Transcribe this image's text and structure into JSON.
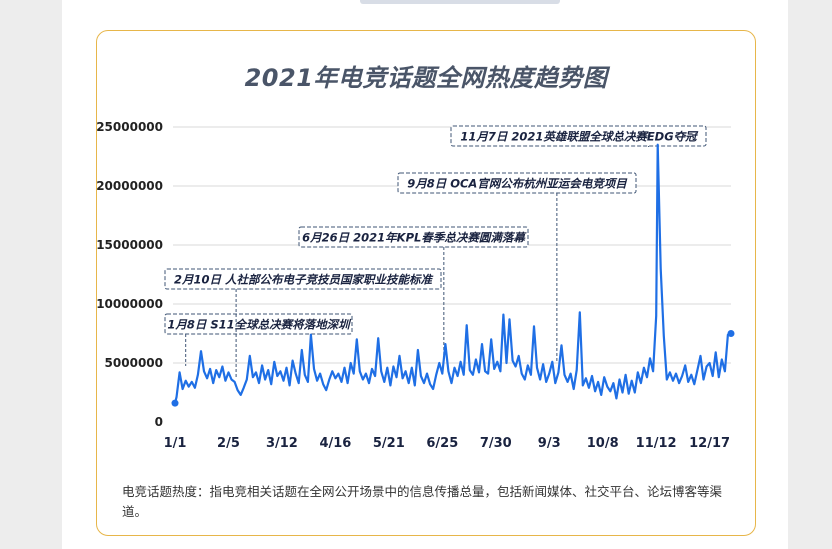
{
  "colors": {
    "line": "#1f6fe5",
    "card_border": "#e7b64a",
    "annotation_border": "#3f5575",
    "title": "#4a5568"
  },
  "chart_data": {
    "type": "line",
    "title": "2021年电竞话题全网热度趋势图",
    "xlabel": "",
    "ylabel": "",
    "ylim": [
      0,
      25000000
    ],
    "yticks": [
      0,
      5000000,
      10000000,
      15000000,
      20000000,
      25000000
    ],
    "ytick_labels": [
      "0",
      "5000000",
      "10000000",
      "15000000",
      "20000000",
      "25000000"
    ],
    "xlim": [
      1,
      365
    ],
    "xtick_days": [
      1,
      36,
      71,
      106,
      141,
      176,
      211,
      246,
      281,
      316,
      351
    ],
    "xtick_labels": [
      "1/1",
      "2/5",
      "3/12",
      "4/16",
      "5/21",
      "6/25",
      "7/30",
      "9/3",
      "10/8",
      "11/12",
      "12/17"
    ],
    "grid": true,
    "series": [
      {
        "points": [
          [
            1,
            1600000
          ],
          [
            2,
            2100000
          ],
          [
            4,
            4200000
          ],
          [
            6,
            2800000
          ],
          [
            8,
            3500000
          ],
          [
            10,
            3000000
          ],
          [
            12,
            3400000
          ],
          [
            14,
            2900000
          ],
          [
            16,
            4000000
          ],
          [
            18,
            6000000
          ],
          [
            20,
            4300000
          ],
          [
            22,
            3700000
          ],
          [
            24,
            4500000
          ],
          [
            26,
            3300000
          ],
          [
            28,
            4400000
          ],
          [
            30,
            3800000
          ],
          [
            32,
            4700000
          ],
          [
            34,
            3500000
          ],
          [
            36,
            4200000
          ],
          [
            38,
            3600000
          ],
          [
            40,
            3400000
          ],
          [
            42,
            2700000
          ],
          [
            44,
            2300000
          ],
          [
            46,
            2900000
          ],
          [
            48,
            3600000
          ],
          [
            50,
            5600000
          ],
          [
            52,
            3800000
          ],
          [
            54,
            4200000
          ],
          [
            56,
            3300000
          ],
          [
            58,
            4800000
          ],
          [
            60,
            3600000
          ],
          [
            62,
            4400000
          ],
          [
            64,
            3200000
          ],
          [
            66,
            5100000
          ],
          [
            68,
            3900000
          ],
          [
            70,
            4300000
          ],
          [
            72,
            3500000
          ],
          [
            74,
            4600000
          ],
          [
            76,
            3100000
          ],
          [
            78,
            5200000
          ],
          [
            80,
            4100000
          ],
          [
            82,
            3300000
          ],
          [
            84,
            6100000
          ],
          [
            86,
            4000000
          ],
          [
            88,
            3400000
          ],
          [
            90,
            7400000
          ],
          [
            92,
            4500000
          ],
          [
            94,
            3500000
          ],
          [
            96,
            4100000
          ],
          [
            98,
            3200000
          ],
          [
            100,
            2700000
          ],
          [
            102,
            3600000
          ],
          [
            104,
            4300000
          ],
          [
            106,
            3700000
          ],
          [
            108,
            4100000
          ],
          [
            110,
            3400000
          ],
          [
            112,
            4600000
          ],
          [
            114,
            3300000
          ],
          [
            116,
            5000000
          ],
          [
            118,
            4100000
          ],
          [
            120,
            7000000
          ],
          [
            122,
            4300000
          ],
          [
            124,
            3600000
          ],
          [
            126,
            4100000
          ],
          [
            128,
            3300000
          ],
          [
            130,
            4500000
          ],
          [
            132,
            3900000
          ],
          [
            134,
            7100000
          ],
          [
            136,
            4300000
          ],
          [
            138,
            3400000
          ],
          [
            140,
            4600000
          ],
          [
            142,
            3100000
          ],
          [
            144,
            4700000
          ],
          [
            146,
            3800000
          ],
          [
            148,
            5600000
          ],
          [
            150,
            3700000
          ],
          [
            152,
            4300000
          ],
          [
            154,
            3300000
          ],
          [
            156,
            4600000
          ],
          [
            158,
            3100000
          ],
          [
            160,
            6100000
          ],
          [
            162,
            3900000
          ],
          [
            164,
            3300000
          ],
          [
            166,
            4100000
          ],
          [
            168,
            3200000
          ],
          [
            170,
            2800000
          ],
          [
            172,
            4000000
          ],
          [
            174,
            5000000
          ],
          [
            176,
            4100000
          ],
          [
            178,
            6600000
          ],
          [
            180,
            4300000
          ],
          [
            182,
            3300000
          ],
          [
            184,
            4600000
          ],
          [
            186,
            3900000
          ],
          [
            188,
            5100000
          ],
          [
            190,
            4000000
          ],
          [
            192,
            8200000
          ],
          [
            194,
            4400000
          ],
          [
            196,
            4000000
          ],
          [
            198,
            5300000
          ],
          [
            200,
            4200000
          ],
          [
            202,
            6600000
          ],
          [
            204,
            4300000
          ],
          [
            206,
            4100000
          ],
          [
            208,
            7000000
          ],
          [
            210,
            4500000
          ],
          [
            212,
            5100000
          ],
          [
            214,
            4300000
          ],
          [
            216,
            9100000
          ],
          [
            218,
            5000000
          ],
          [
            220,
            8700000
          ],
          [
            222,
            5200000
          ],
          [
            224,
            4700000
          ],
          [
            226,
            5600000
          ],
          [
            228,
            4100000
          ],
          [
            230,
            3600000
          ],
          [
            232,
            4800000
          ],
          [
            234,
            4000000
          ],
          [
            236,
            8100000
          ],
          [
            238,
            4600000
          ],
          [
            240,
            3600000
          ],
          [
            242,
            4900000
          ],
          [
            244,
            3400000
          ],
          [
            246,
            4100000
          ],
          [
            248,
            5100000
          ],
          [
            250,
            3300000
          ],
          [
            252,
            4200000
          ],
          [
            254,
            6500000
          ],
          [
            256,
            4000000
          ],
          [
            258,
            3400000
          ],
          [
            260,
            4100000
          ],
          [
            262,
            2800000
          ],
          [
            264,
            4400000
          ],
          [
            266,
            9300000
          ],
          [
            268,
            3100000
          ],
          [
            270,
            3700000
          ],
          [
            272,
            2900000
          ],
          [
            274,
            3900000
          ],
          [
            276,
            2600000
          ],
          [
            278,
            3400000
          ],
          [
            280,
            2300000
          ],
          [
            282,
            3800000
          ],
          [
            284,
            3000000
          ],
          [
            286,
            2600000
          ],
          [
            288,
            3300000
          ],
          [
            290,
            2000000
          ],
          [
            292,
            3600000
          ],
          [
            294,
            2500000
          ],
          [
            296,
            4000000
          ],
          [
            298,
            2400000
          ],
          [
            300,
            3500000
          ],
          [
            302,
            2500000
          ],
          [
            304,
            4200000
          ],
          [
            306,
            3300000
          ],
          [
            308,
            4600000
          ],
          [
            310,
            3800000
          ],
          [
            312,
            5400000
          ],
          [
            314,
            4300000
          ],
          [
            316,
            9000000
          ],
          [
            317,
            23500000
          ],
          [
            319,
            13000000
          ],
          [
            321,
            7300000
          ],
          [
            323,
            3600000
          ],
          [
            325,
            4200000
          ],
          [
            327,
            3500000
          ],
          [
            329,
            4100000
          ],
          [
            331,
            3300000
          ],
          [
            333,
            3900000
          ],
          [
            335,
            4800000
          ],
          [
            337,
            3400000
          ],
          [
            339,
            4000000
          ],
          [
            341,
            3200000
          ],
          [
            343,
            4400000
          ],
          [
            345,
            5600000
          ],
          [
            347,
            3600000
          ],
          [
            349,
            4700000
          ],
          [
            351,
            5000000
          ],
          [
            353,
            3900000
          ],
          [
            355,
            5900000
          ],
          [
            357,
            3800000
          ],
          [
            359,
            5300000
          ],
          [
            361,
            4300000
          ],
          [
            363,
            7400000
          ],
          [
            365,
            7500000
          ]
        ]
      }
    ],
    "annotations": [
      {
        "text": "1月8日 S11全球总决赛将落地深圳",
        "day": 8
      },
      {
        "text": "2月10日 人社部公布电子竞技员国家职业技能标准",
        "day": 41
      },
      {
        "text": "6月26日 2021年KPL春季总决赛圆满落幕",
        "day": 177
      },
      {
        "text": "9月8日 OCA官网公布杭州亚运会电竞项目",
        "day": 251
      },
      {
        "text": "11月7日   2021英雄联盟全球总决赛EDG夺冠",
        "day": 311
      }
    ]
  },
  "footnote": "电竞话题热度：指电竞相关话题在全网公开场景中的信息传播总量，包括新闻媒体、社交平台、论坛博客等渠道。"
}
